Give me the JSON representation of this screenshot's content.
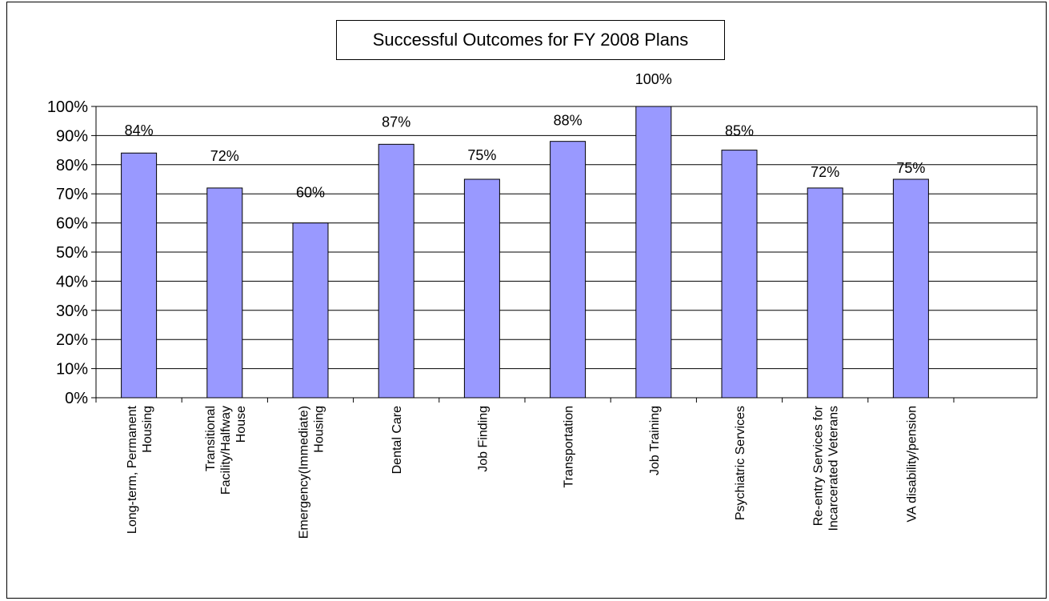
{
  "chart_data": {
    "type": "bar",
    "title": "Successful Outcomes for FY 2008 Plans",
    "xlabel": "",
    "ylabel": "",
    "ylim": [
      0,
      100
    ],
    "y_ticks": [
      "0%",
      "10%",
      "20%",
      "30%",
      "40%",
      "50%",
      "60%",
      "70%",
      "80%",
      "90%",
      "100%"
    ],
    "grid": true,
    "legend": "none",
    "categories": [
      [
        "Long-term, Permanent",
        "Housing"
      ],
      [
        "Transitional",
        "Facility/Halfway",
        "House"
      ],
      [
        "Emergency(Immediate)",
        "Housing"
      ],
      [
        "Dental Care"
      ],
      [
        "Job Finding"
      ],
      [
        "Transportation"
      ],
      [
        "Job Training"
      ],
      [
        "Psychiatric Services"
      ],
      [
        "Re-entry Services for",
        "Incarcerated Veterans"
      ],
      [
        "VA disability/pension"
      ]
    ],
    "values": [
      84,
      72,
      60,
      87,
      75,
      88,
      100,
      85,
      72,
      75
    ],
    "data_labels": [
      "84%",
      "72%",
      "60%",
      "87%",
      "75%",
      "88%",
      "100%",
      "85%",
      "72%",
      "75%"
    ],
    "colors": {
      "bar_fill": "#9999ff",
      "bar_stroke": "#000000",
      "grid": "#000000",
      "text": "#000000"
    }
  }
}
